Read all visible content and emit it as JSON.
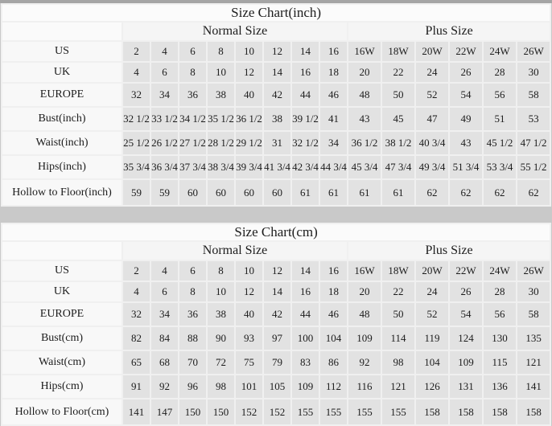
{
  "colors": {
    "page_background": "#c9c9c9",
    "top_strip": "#a5a5a5",
    "panel_background": "#fbfbfb",
    "label_cell_background": "#f8f8f8",
    "data_cell_background": "#e2e2e2"
  },
  "chart_data": [
    {
      "type": "table",
      "title": "Size Chart(inch)",
      "column_groups": [
        {
          "label": "Normal Size",
          "columns": 8
        },
        {
          "label": "Plus Size",
          "columns": 6
        }
      ],
      "rows": [
        {
          "label": "US",
          "normal": [
            "2",
            "4",
            "6",
            "8",
            "10",
            "12",
            "14",
            "16"
          ],
          "plus": [
            "16W",
            "18W",
            "20W",
            "22W",
            "24W",
            "26W"
          ]
        },
        {
          "label": "UK",
          "normal": [
            "4",
            "6",
            "8",
            "10",
            "12",
            "14",
            "16",
            "18"
          ],
          "plus": [
            "20",
            "22",
            "24",
            "26",
            "28",
            "30"
          ]
        },
        {
          "label": "EUROPE",
          "normal": [
            "32",
            "34",
            "36",
            "38",
            "40",
            "42",
            "44",
            "46"
          ],
          "plus": [
            "48",
            "50",
            "52",
            "54",
            "56",
            "58"
          ]
        },
        {
          "label": "Bust(inch)",
          "normal": [
            "32 1/2",
            "33 1/2",
            "34 1/2",
            "35 1/2",
            "36 1/2",
            "38",
            "39 1/2",
            "41"
          ],
          "plus": [
            "43",
            "45",
            "47",
            "49",
            "51",
            "53"
          ]
        },
        {
          "label": "Waist(inch)",
          "normal": [
            "25 1/2",
            "26 1/2",
            "27 1/2",
            "28 1/2",
            "29 1/2",
            "31",
            "32 1/2",
            "34"
          ],
          "plus": [
            "36 1/2",
            "38 1/2",
            "40 3/4",
            "43",
            "45 1/2",
            "47 1/2"
          ]
        },
        {
          "label": "Hips(inch)",
          "normal": [
            "35 3/4",
            "36 3/4",
            "37 3/4",
            "38 3/4",
            "39 3/4",
            "41 3/4",
            "42 3/4",
            "44 3/4"
          ],
          "plus": [
            "45 3/4",
            "47 3/4",
            "49 3/4",
            "51 3/4",
            "53 3/4",
            "55 1/2"
          ]
        },
        {
          "label": "Hollow to Floor(inch)",
          "normal": [
            "59",
            "59",
            "60",
            "60",
            "60",
            "60",
            "61",
            "61"
          ],
          "plus": [
            "61",
            "61",
            "62",
            "62",
            "62",
            "62"
          ]
        }
      ]
    },
    {
      "type": "table",
      "title": "Size Chart(cm)",
      "column_groups": [
        {
          "label": "Normal Size",
          "columns": 8
        },
        {
          "label": "Plus Size",
          "columns": 6
        }
      ],
      "rows": [
        {
          "label": "US",
          "normal": [
            "2",
            "4",
            "6",
            "8",
            "10",
            "12",
            "14",
            "16"
          ],
          "plus": [
            "16W",
            "18W",
            "20W",
            "22W",
            "24W",
            "26W"
          ]
        },
        {
          "label": "UK",
          "normal": [
            "4",
            "6",
            "8",
            "10",
            "12",
            "14",
            "16",
            "18"
          ],
          "plus": [
            "20",
            "22",
            "24",
            "26",
            "28",
            "30"
          ]
        },
        {
          "label": "EUROPE",
          "normal": [
            "32",
            "34",
            "36",
            "38",
            "40",
            "42",
            "44",
            "46"
          ],
          "plus": [
            "48",
            "50",
            "52",
            "54",
            "56",
            "58"
          ]
        },
        {
          "label": "Bust(cm)",
          "normal": [
            "82",
            "84",
            "88",
            "90",
            "93",
            "97",
            "100",
            "104"
          ],
          "plus": [
            "109",
            "114",
            "119",
            "124",
            "130",
            "135"
          ]
        },
        {
          "label": "Waist(cm)",
          "normal": [
            "65",
            "68",
            "70",
            "72",
            "75",
            "79",
            "83",
            "86"
          ],
          "plus": [
            "92",
            "98",
            "104",
            "109",
            "115",
            "121"
          ]
        },
        {
          "label": "Hips(cm)",
          "normal": [
            "91",
            "92",
            "96",
            "98",
            "101",
            "105",
            "109",
            "112"
          ],
          "plus": [
            "116",
            "121",
            "126",
            "131",
            "136",
            "141"
          ]
        },
        {
          "label": "Hollow to Floor(cm)",
          "normal": [
            "141",
            "147",
            "150",
            "150",
            "152",
            "152",
            "155",
            "155"
          ],
          "plus": [
            "155",
            "155",
            "158",
            "158",
            "158",
            "158"
          ]
        }
      ]
    }
  ]
}
